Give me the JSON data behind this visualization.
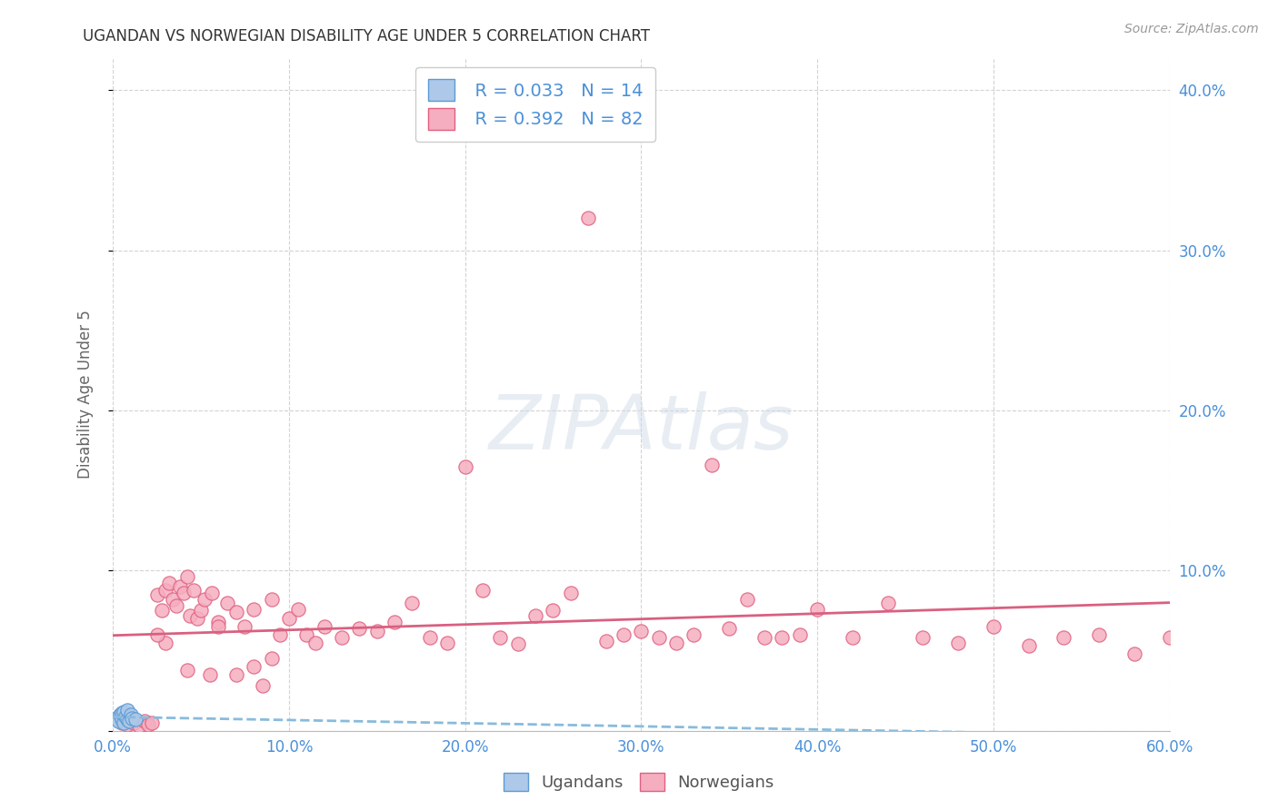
{
  "title": "UGANDAN VS NORWEGIAN DISABILITY AGE UNDER 5 CORRELATION CHART",
  "source": "Source: ZipAtlas.com",
  "ylabel": "Disability Age Under 5",
  "xlim": [
    0.0,
    0.6
  ],
  "ylim": [
    0.0,
    0.42
  ],
  "xticks": [
    0.0,
    0.1,
    0.2,
    0.3,
    0.4,
    0.5,
    0.6
  ],
  "yticks": [
    0.0,
    0.1,
    0.2,
    0.3,
    0.4
  ],
  "ytick_labels": [
    "",
    "10.0%",
    "20.0%",
    "30.0%",
    "40.0%"
  ],
  "xtick_labels": [
    "0.0%",
    "10.0%",
    "20.0%",
    "30.0%",
    "40.0%",
    "50.0%",
    "60.0%"
  ],
  "ugandan_color": "#adc8e8",
  "norwegian_color": "#f5aec0",
  "ugandan_edge": "#5b9bd5",
  "norwegian_edge": "#e06080",
  "trend_ugandan_color": "#88bbdd",
  "trend_norwegian_color": "#d96080",
  "legend_R_ugandan": "R = 0.033",
  "legend_N_ugandan": "N = 14",
  "legend_R_norwegian": "R = 0.392",
  "legend_N_norwegian": "N = 82",
  "watermark": "ZIPAtlas",
  "background_color": "#ffffff",
  "grid_color": "#c8c8c8",
  "title_color": "#333333",
  "axis_label_color": "#666666",
  "tick_label_color": "#4a90d9",
  "ugandan_x": [
    0.002,
    0.003,
    0.004,
    0.005,
    0.005,
    0.006,
    0.006,
    0.007,
    0.008,
    0.008,
    0.009,
    0.01,
    0.011,
    0.013
  ],
  "ugandan_y": [
    0.008,
    0.006,
    0.01,
    0.007,
    0.011,
    0.005,
    0.012,
    0.009,
    0.007,
    0.013,
    0.006,
    0.01,
    0.008,
    0.007
  ],
  "norwegian_x": [
    0.005,
    0.008,
    0.01,
    0.012,
    0.015,
    0.018,
    0.02,
    0.022,
    0.025,
    0.028,
    0.03,
    0.032,
    0.034,
    0.036,
    0.038,
    0.04,
    0.042,
    0.044,
    0.046,
    0.048,
    0.05,
    0.052,
    0.056,
    0.06,
    0.065,
    0.07,
    0.075,
    0.08,
    0.085,
    0.09,
    0.095,
    0.1,
    0.105,
    0.11,
    0.115,
    0.12,
    0.13,
    0.14,
    0.15,
    0.16,
    0.17,
    0.18,
    0.19,
    0.2,
    0.21,
    0.22,
    0.23,
    0.24,
    0.25,
    0.26,
    0.27,
    0.28,
    0.29,
    0.3,
    0.31,
    0.32,
    0.33,
    0.34,
    0.35,
    0.36,
    0.37,
    0.38,
    0.39,
    0.4,
    0.42,
    0.44,
    0.46,
    0.48,
    0.5,
    0.52,
    0.54,
    0.56,
    0.58,
    0.6,
    0.03,
    0.06,
    0.09,
    0.025,
    0.055,
    0.08,
    0.042,
    0.07
  ],
  "norwegian_y": [
    0.005,
    0.004,
    0.006,
    0.005,
    0.003,
    0.006,
    0.004,
    0.005,
    0.085,
    0.075,
    0.088,
    0.092,
    0.082,
    0.078,
    0.09,
    0.086,
    0.096,
    0.072,
    0.088,
    0.07,
    0.075,
    0.082,
    0.086,
    0.068,
    0.08,
    0.074,
    0.065,
    0.076,
    0.028,
    0.082,
    0.06,
    0.07,
    0.076,
    0.06,
    0.055,
    0.065,
    0.058,
    0.064,
    0.062,
    0.068,
    0.08,
    0.058,
    0.055,
    0.165,
    0.088,
    0.058,
    0.054,
    0.072,
    0.075,
    0.086,
    0.32,
    0.056,
    0.06,
    0.062,
    0.058,
    0.055,
    0.06,
    0.166,
    0.064,
    0.082,
    0.058,
    0.058,
    0.06,
    0.076,
    0.058,
    0.08,
    0.058,
    0.055,
    0.065,
    0.053,
    0.058,
    0.06,
    0.048,
    0.058,
    0.055,
    0.065,
    0.045,
    0.06,
    0.035,
    0.04,
    0.038,
    0.035
  ]
}
